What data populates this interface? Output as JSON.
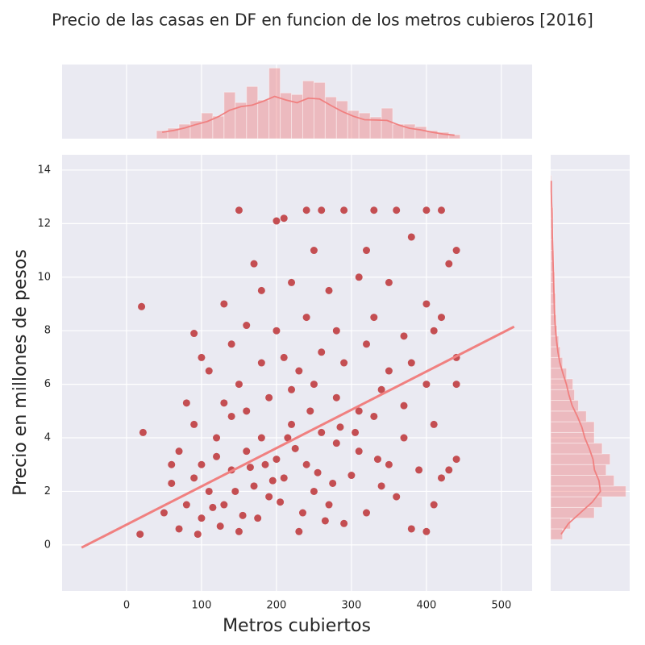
{
  "chart_data": [
    {
      "type": "scatter",
      "title": "Precio de las casas en DF en funcion de los metros cubieros [2016]",
      "xlabel": "Metros cubiertos",
      "ylabel": "Precio en millones de pesos",
      "color": "#c44e52",
      "x": [
        20,
        22,
        18,
        90,
        150,
        200,
        210,
        240,
        260,
        290,
        330,
        360,
        400,
        420,
        440,
        170,
        250,
        320,
        380,
        430,
        130,
        180,
        220,
        270,
        310,
        350,
        400,
        420,
        100,
        140,
        160,
        200,
        240,
        280,
        330,
        370,
        410,
        440,
        80,
        110,
        130,
        150,
        180,
        210,
        230,
        260,
        290,
        320,
        350,
        380,
        400,
        440,
        60,
        70,
        90,
        100,
        120,
        140,
        160,
        190,
        220,
        250,
        280,
        310,
        340,
        370,
        410,
        440,
        50,
        60,
        70,
        80,
        90,
        100,
        110,
        120,
        130,
        140,
        150,
        160,
        170,
        180,
        190,
        200,
        210,
        220,
        230,
        240,
        250,
        260,
        270,
        280,
        290,
        300,
        310,
        320,
        330,
        340,
        350,
        360,
        370,
        380,
        390,
        400,
        410,
        420,
        430,
        95,
        125,
        175,
        205,
        235,
        265,
        195,
        225,
        255,
        285,
        165,
        145,
        115,
        305,
        335,
        245,
        215,
        185,
        275,
        155
      ],
      "y": [
        8.9,
        4.2,
        0.4,
        7.9,
        12.5,
        12.1,
        12.2,
        12.5,
        12.5,
        12.5,
        12.5,
        12.5,
        12.5,
        12.5,
        11.0,
        10.5,
        11.0,
        11.0,
        11.5,
        10.5,
        9.0,
        9.5,
        9.8,
        9.5,
        10.0,
        9.8,
        9.0,
        8.5,
        7.0,
        7.5,
        8.2,
        8.0,
        8.5,
        8.0,
        8.5,
        7.8,
        8.0,
        7.0,
        5.3,
        6.5,
        5.3,
        6.0,
        6.8,
        7.0,
        6.5,
        7.2,
        6.8,
        7.5,
        6.5,
        6.8,
        6.0,
        6.0,
        3.0,
        3.5,
        4.5,
        3.0,
        4.0,
        4.8,
        5.0,
        5.5,
        5.8,
        6.0,
        5.5,
        5.0,
        5.8,
        5.2,
        4.5,
        3.2,
        1.2,
        2.3,
        0.6,
        1.5,
        2.5,
        1.0,
        2.0,
        3.3,
        1.5,
        2.8,
        0.5,
        3.5,
        2.2,
        4.0,
        1.8,
        3.2,
        2.5,
        4.5,
        0.5,
        3.0,
        2.0,
        4.2,
        1.5,
        3.8,
        0.8,
        2.6,
        3.5,
        1.2,
        4.8,
        2.2,
        3.0,
        1.8,
        4.0,
        0.6,
        2.8,
        0.5,
        1.5,
        2.5,
        2.8,
        0.4,
        0.7,
        1.0,
        1.6,
        1.2,
        0.9,
        2.4,
        3.6,
        2.7,
        4.4,
        2.9,
        2.0,
        1.4,
        4.2,
        3.2,
        5.0,
        4.0,
        3.0,
        2.3,
        1.1
      ],
      "regression": {
        "color": "#f08080",
        "x": [
          -60,
          517
        ],
        "y": [
          -0.1,
          8.15
        ]
      },
      "xlim": [
        -86,
        541
      ],
      "ylim": [
        -1.72,
        14.57
      ],
      "xticks": [
        0,
        100,
        200,
        300,
        400,
        500
      ],
      "yticks": [
        0,
        2,
        4,
        6,
        8,
        10,
        12,
        14
      ],
      "grid": true
    },
    {
      "type": "histogram",
      "orientation": "vertical",
      "color": "#f08080",
      "bins": [
        40,
        55,
        70,
        85,
        100,
        115,
        130,
        145,
        160,
        175,
        190,
        205,
        220,
        235,
        250,
        265,
        280,
        295,
        310,
        325,
        340,
        355,
        370,
        385,
        400,
        415,
        430,
        445
      ],
      "counts": [
        10,
        13,
        18,
        22,
        32,
        28,
        58,
        45,
        65,
        48,
        88,
        57,
        55,
        72,
        70,
        52,
        47,
        35,
        32,
        27,
        38,
        18,
        18,
        15,
        10,
        8,
        5
      ]
    },
    {
      "type": "histogram",
      "orientation": "horizontal",
      "color": "#f08080",
      "bins": [
        0.2,
        0.6,
        1.0,
        1.4,
        1.8,
        2.2,
        2.6,
        3.0,
        3.4,
        3.8,
        4.2,
        4.6,
        5.0,
        5.4,
        5.8,
        6.2,
        6.6,
        7.0,
        7.4,
        7.8,
        8.2,
        8.6,
        9.0,
        9.4,
        9.8,
        10.2,
        10.6,
        11.0,
        11.4,
        11.8,
        12.2,
        12.6,
        13.0,
        13.4,
        13.8
      ],
      "counts": [
        15,
        25,
        55,
        65,
        95,
        80,
        70,
        75,
        65,
        55,
        55,
        45,
        35,
        30,
        28,
        20,
        15,
        12,
        10,
        8,
        7,
        6,
        6,
        5,
        5,
        4,
        4,
        3,
        3,
        2,
        3,
        1,
        1,
        1
      ]
    }
  ]
}
